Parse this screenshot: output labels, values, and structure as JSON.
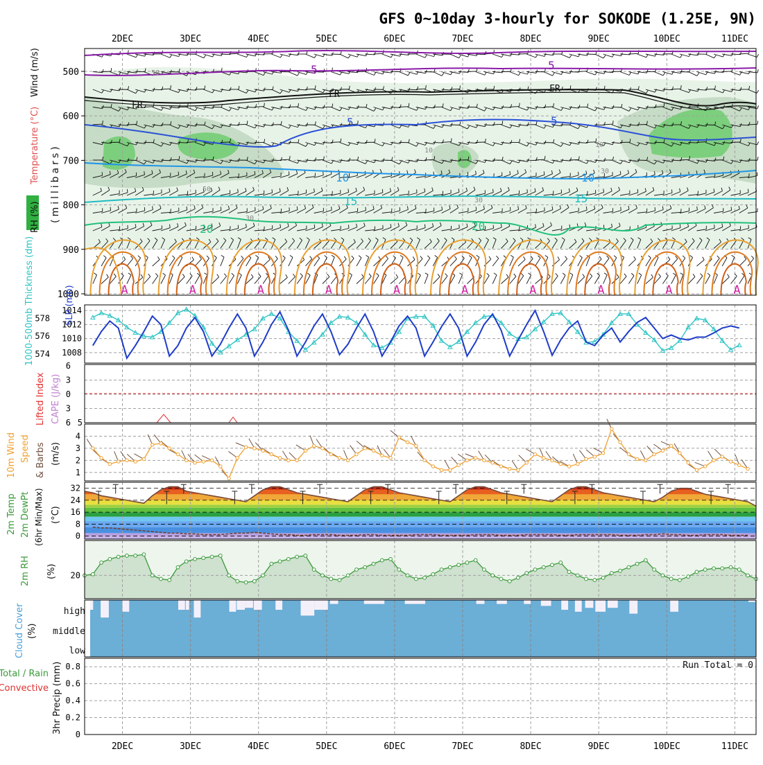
{
  "title": "GFS 0~10day 3-hourly for SOKODE (1.25E, 9N)",
  "days": [
    "2DEC",
    "3DEC",
    "4DEC",
    "5DEC",
    "6DEC",
    "7DEC",
    "8DEC",
    "9DEC",
    "10DEC",
    "11DEC"
  ],
  "colors": {
    "frame": "#000000",
    "grid": "#a0a0a0",
    "thickness": "#2ec4c4",
    "slp": "#1e3cc8",
    "wind_speed": "#f0a030",
    "wind_barb": "#705040",
    "rh2m": "#3a9a3a",
    "rh_fill": "#d8ecd8",
    "cloud": "#6baed6",
    "cloud_gap": "#f4f0fa",
    "lifted": "#e03030",
    "cape": "#c080d0",
    "temp_green": "#30b040",
    "blue_band": "#3a8ad8",
    "lavender": "#c0a8e8"
  },
  "panels": {
    "upper": {
      "ylabel_1": "Wind (m/s)",
      "ylabel_2": "Temperature (°C)",
      "ylabel_3": "RH (%)",
      "ylabel_unit": "(millibars)",
      "yticks": [
        "500",
        "600",
        "700",
        "800",
        "900",
        "1000"
      ],
      "contour_labels": {
        "iso_m5": "5",
        "freezing": "FR",
        "iso_5": "5",
        "iso_10": "10",
        "iso_15": "15",
        "iso_20": "20",
        "rh_50": "50",
        "rh_30": "30",
        "rh_10": "10",
        "warm": "A"
      }
    },
    "slp": {
      "ylabel_left": "1000-500mb Thickness (dm)",
      "ylabel_right": "SLP (mb)",
      "yticks_left": [
        "578",
        "576",
        "574"
      ],
      "yticks_right": [
        "1014",
        "1012",
        "1010",
        "1008"
      ]
    },
    "cape": {
      "ylabel_1": "CAPE (J/kg)",
      "ylabel_2": "Lifted Index",
      "yticks_left": [
        "6",
        "3",
        "0",
        "3",
        "6"
      ],
      "tick_right": "5"
    },
    "wind10m": {
      "ylabel_1": "10m Wind",
      "ylabel_2": "Speed",
      "ylabel_3": "& Barbs",
      "ylabel_unit": "(m/s)",
      "yticks": [
        "4",
        "3",
        "2",
        "1"
      ]
    },
    "temp2m": {
      "ylabel_1": "2m Temp",
      "ylabel_2": "2m DewPt",
      "ylabel_3": "(6hr Min/Max)",
      "ylabel_unit": "(°C)",
      "yticks": [
        "32",
        "24",
        "16",
        "8",
        "0"
      ]
    },
    "rh2m": {
      "ylabel_1": "2m RH",
      "ylabel_unit": "(%)",
      "yticks": [
        "20"
      ]
    },
    "cloud": {
      "ylabel_1": "Cloud Cover",
      "ylabel_unit": "(%)",
      "levels": [
        "high",
        "middle",
        "low"
      ]
    },
    "precip": {
      "ylabel_1": "Total / Rain",
      "ylabel_2": "Convective",
      "ylabel_3": "3hr Precip (mm)",
      "yticks": [
        "0.8",
        "0.6",
        "0.4",
        "0.2",
        "0"
      ],
      "run_total": "Run Total = 0"
    }
  },
  "chart_data": [
    {
      "type": "line",
      "panel": "slp",
      "name_left": "1000-500mb Thickness (dm)",
      "name_right": "SLP (mb)",
      "x_unit": "days from 1DEC 12Z",
      "ylim_slp": [
        1006.5,
        1014.8
      ],
      "ylim_thk": [
        573,
        579.5
      ],
      "slp": [
        1011.0,
        1009.0,
        1011.0,
        1012.5,
        1011.5,
        1007.2,
        1009.0,
        1011.0,
        1013.2,
        1012.0,
        1007.5,
        1009.0,
        1011.5,
        1013.0,
        1011.0,
        1007.5,
        1009.2,
        1011.5,
        1013.5,
        1011.5,
        1007.5,
        1009.5,
        1012.0,
        1013.8,
        1011.2,
        1007.5,
        1009.5,
        1011.8,
        1013.5,
        1011.0,
        1007.7,
        1009.2,
        1011.5,
        1013.5,
        1011.0,
        1007.5,
        1009.5,
        1011.8,
        1013.2,
        1011.5,
        1007.5,
        1009.5,
        1011.7,
        1013.5,
        1011.5,
        1007.5,
        1009.5,
        1012.0,
        1013.5,
        1011.2,
        1007.5,
        1009.8,
        1012.0,
        1014.0,
        1011.0,
        1007.6,
        1009.8,
        1011.5,
        1012.5,
        1009.5,
        1009.0,
        1010.5,
        1011.5,
        1009.5,
        1011.0,
        1012.3,
        1013.0,
        1011.5,
        1010.0,
        1010.5,
        1010.0,
        1009.8,
        1010.2,
        1010.2,
        1010.8,
        1011.5,
        1011.8,
        1011.5
      ],
      "thickness": [
        577.8,
        578.1,
        578.6,
        578.3,
        577.8,
        577.0,
        576.4,
        576.0,
        575.9,
        576.5,
        577.5,
        578.6,
        579.0,
        578.3,
        577.0,
        575.2,
        574.2,
        574.9,
        575.6,
        576.2,
        576.8,
        578.0,
        578.5,
        578.0,
        576.5,
        575.5,
        574.5,
        575.3,
        576.2,
        577.5,
        578.2,
        578.1,
        577.5,
        576.2,
        575.0,
        574.7,
        575.3,
        576.5,
        578.0,
        578.2,
        578.2,
        577.2,
        575.5,
        574.8,
        575.4,
        576.5,
        577.5,
        578.2,
        578.3,
        577.5,
        576.3,
        575.7,
        575.9,
        576.8,
        577.6,
        578.5,
        578.6,
        577.6,
        576.5,
        575.3,
        575.4,
        576.2,
        577.5,
        578.5,
        578.5,
        577.3,
        576.4,
        575.6,
        574.4,
        574.7,
        575.5,
        577.0,
        578.0,
        577.8,
        576.8,
        575.5,
        574.5,
        575.0
      ]
    },
    {
      "type": "line",
      "panel": "wind10m",
      "name": "10m Wind Speed (m/s)",
      "ylim": [
        0.3,
        5.0
      ],
      "values": [
        3.2,
        3.0,
        2.2,
        1.7,
        1.9,
        2.0,
        1.9,
        2.1,
        3.3,
        3.4,
        3.0,
        2.5,
        2.0,
        1.8,
        1.9,
        2.0,
        1.5,
        0.5,
        2.2,
        3.1,
        3.0,
        2.8,
        2.5,
        2.2,
        2.0,
        2.0,
        2.8,
        3.2,
        3.0,
        2.5,
        2.2,
        2.0,
        2.5,
        3.0,
        2.8,
        2.4,
        2.2,
        3.9,
        3.5,
        3.2,
        2.0,
        1.5,
        1.2,
        1.2,
        1.6,
        2.0,
        2.2,
        2.0,
        1.8,
        1.5,
        1.3,
        1.2,
        1.8,
        2.5,
        2.2,
        2.0,
        1.7,
        1.5,
        1.7,
        2.1,
        2.3,
        2.6,
        4.6,
        3.5,
        2.5,
        2.1,
        2.0,
        2.5,
        2.8,
        3.2,
        2.6,
        1.8,
        1.2,
        1.5,
        2.0,
        2.3,
        1.9,
        1.6,
        1.3,
        1.1,
        1.9
      ]
    },
    {
      "type": "area",
      "panel": "temp2m",
      "name": "2m Temp (°C)",
      "ylim": [
        -2,
        36
      ],
      "temp": [
        30,
        29,
        27,
        26,
        25,
        24,
        23,
        22,
        27,
        31,
        33,
        33,
        30,
        29,
        28,
        27,
        26,
        25,
        24,
        23,
        27,
        31,
        33,
        33,
        31,
        29,
        28,
        27,
        26,
        25,
        24,
        23,
        27,
        31,
        33,
        33,
        31,
        29,
        28,
        27,
        26,
        25,
        24,
        23,
        27,
        31,
        33,
        33,
        31,
        29,
        28,
        27,
        26,
        25,
        24,
        23,
        27,
        31,
        33,
        33,
        31,
        29,
        28,
        27,
        26,
        25,
        24,
        23,
        26,
        30,
        32,
        32,
        30,
        28,
        27,
        26,
        25,
        24,
        23,
        20
      ],
      "dewpt": [
        6,
        6,
        5.5,
        5.5,
        5,
        4.5,
        4,
        3.5,
        3,
        2.5,
        2,
        2,
        1.5,
        1.5,
        1,
        1,
        1,
        1.5,
        2,
        2,
        2.5,
        2,
        1.5,
        1,
        1,
        0.5,
        0.5,
        1,
        1,
        1,
        0.5,
        0.5,
        0.5,
        1,
        1,
        0.5,
        0.5,
        0.5,
        0.5,
        1,
        1,
        1,
        0.5,
        0.5,
        0.5,
        0.5,
        1,
        1,
        1,
        0.5,
        0.5,
        0.5,
        1,
        1,
        1,
        1,
        0.5,
        0.5,
        1,
        1,
        1,
        1,
        1,
        0.5,
        0.5,
        0.5,
        1,
        1,
        1.5,
        1,
        1,
        0.5,
        0.5,
        1,
        1,
        1,
        0.5,
        0.5,
        0.5,
        0.5
      ]
    },
    {
      "type": "area",
      "panel": "rh2m",
      "name": "2m RH (%)",
      "ylim": [
        0,
        50
      ],
      "values": [
        20,
        21,
        31,
        34,
        36,
        37,
        37,
        38,
        20,
        17,
        16,
        27,
        32,
        34,
        35,
        36,
        37,
        20,
        15,
        14,
        15,
        20,
        30,
        32,
        34,
        36,
        37,
        25,
        20,
        17,
        16,
        20,
        25,
        27,
        30,
        33,
        34,
        25,
        20,
        17,
        18,
        21,
        25,
        27,
        29,
        31,
        33,
        25,
        20,
        17,
        15,
        18,
        22,
        25,
        27,
        29,
        31,
        23,
        20,
        17,
        16,
        18,
        22,
        24,
        27,
        30,
        33,
        25,
        20,
        17,
        16,
        19,
        23,
        25,
        26,
        26,
        27,
        25,
        20,
        17,
        17,
        20,
        24,
        26,
        27,
        28,
        29
      ]
    },
    {
      "type": "bar",
      "panel": "cloud",
      "name": "high cloud gaps",
      "gap_start_day": [
        0.02,
        0.23,
        0.55,
        1.37,
        1.48,
        1.6,
        2.12,
        2.23,
        2.35,
        2.48,
        2.8,
        3.17,
        3.37,
        3.6,
        4.1,
        4.7,
        5.75,
        6.05,
        6.45,
        6.7,
        7.0,
        7.2,
        7.35,
        7.5,
        7.68,
        8.0,
        8.6,
        9.75
      ],
      "gap_width_day": [
        0.1,
        0.12,
        0.1,
        0.1,
        0.05,
        0.1,
        0.1,
        0.12,
        0.12,
        0.12,
        0.1,
        0.2,
        0.2,
        0.12,
        0.3,
        0.3,
        0.12,
        0.15,
        0.1,
        0.15,
        0.1,
        0.1,
        0.12,
        0.15,
        0.15,
        0.12,
        0.12,
        0.1
      ],
      "gap_depth_level": [
        0.5,
        0.9,
        0.6,
        0.5,
        0.5,
        0.9,
        0.6,
        0.5,
        0.4,
        0.5,
        0.5,
        0.8,
        0.5,
        0.2,
        0.2,
        0.2,
        0.2,
        0.2,
        0.2,
        0.3,
        0.5,
        0.6,
        0.4,
        0.6,
        0.4,
        0.7,
        0.6,
        0.1
      ]
    }
  ]
}
